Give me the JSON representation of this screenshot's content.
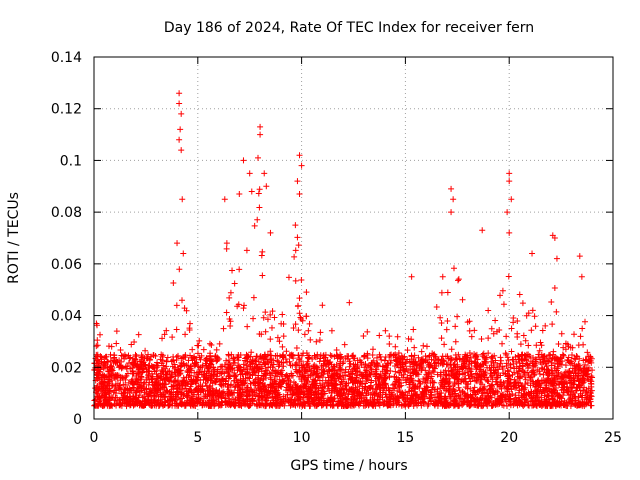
{
  "chart_data": {
    "type": "scatter",
    "title": "Day 186 of 2024, Rate Of TEC Index for receiver fern",
    "xlabel": "GPS time / hours",
    "ylabel": "ROTI / TECUs",
    "xlim": [
      0,
      25
    ],
    "ylim": [
      0,
      0.14
    ],
    "xticks": [
      0,
      5,
      10,
      15,
      20,
      25
    ],
    "yticks": [
      0,
      0.02,
      0.04,
      0.06,
      0.08,
      0.1,
      0.12,
      0.14
    ],
    "xtick_labels": [
      "0",
      "5",
      "10",
      "15",
      "20",
      "25"
    ],
    "ytick_labels": [
      "0",
      "0.02",
      "0.04",
      "0.06",
      "0.08",
      "0.1",
      "0.12",
      "0.14"
    ],
    "grid": true,
    "marker": "plus",
    "point_color": "#ff0000",
    "data_range_hours": [
      0,
      24
    ],
    "baseline_roti": [
      0.005,
      0.025
    ],
    "activity_envelope": [
      {
        "x": 0.0,
        "y": 0.04
      },
      {
        "x": 0.5,
        "y": 0.03
      },
      {
        "x": 1.0,
        "y": 0.032
      },
      {
        "x": 1.5,
        "y": 0.028
      },
      {
        "x": 2.0,
        "y": 0.037
      },
      {
        "x": 2.5,
        "y": 0.033
      },
      {
        "x": 3.0,
        "y": 0.027
      },
      {
        "x": 3.5,
        "y": 0.04
      },
      {
        "x": 4.0,
        "y": 0.068
      },
      {
        "x": 4.5,
        "y": 0.04
      },
      {
        "x": 5.0,
        "y": 0.036
      },
      {
        "x": 5.5,
        "y": 0.03
      },
      {
        "x": 6.0,
        "y": 0.045
      },
      {
        "x": 6.3,
        "y": 0.068
      },
      {
        "x": 7.0,
        "y": 0.06
      },
      {
        "x": 7.5,
        "y": 0.08
      },
      {
        "x": 8.0,
        "y": 0.09
      },
      {
        "x": 8.5,
        "y": 0.06
      },
      {
        "x": 9.0,
        "y": 0.04
      },
      {
        "x": 9.8,
        "y": 0.075
      },
      {
        "x": 10.5,
        "y": 0.035
      },
      {
        "x": 11.0,
        "y": 0.035
      },
      {
        "x": 12.0,
        "y": 0.035
      },
      {
        "x": 12.5,
        "y": 0.02
      },
      {
        "x": 13.0,
        "y": 0.035
      },
      {
        "x": 14.0,
        "y": 0.035
      },
      {
        "x": 15.0,
        "y": 0.035
      },
      {
        "x": 16.0,
        "y": 0.04
      },
      {
        "x": 16.7,
        "y": 0.05
      },
      {
        "x": 17.3,
        "y": 0.06
      },
      {
        "x": 18.0,
        "y": 0.045
      },
      {
        "x": 18.7,
        "y": 0.05
      },
      {
        "x": 19.3,
        "y": 0.04
      },
      {
        "x": 20.0,
        "y": 0.065
      },
      {
        "x": 20.5,
        "y": 0.05
      },
      {
        "x": 21.0,
        "y": 0.05
      },
      {
        "x": 21.5,
        "y": 0.03
      },
      {
        "x": 22.2,
        "y": 0.06
      },
      {
        "x": 22.7,
        "y": 0.03
      },
      {
        "x": 23.0,
        "y": 0.03
      },
      {
        "x": 23.5,
        "y": 0.05
      },
      {
        "x": 24.0,
        "y": 0.02
      }
    ],
    "notable_points": [
      {
        "x": 4.1,
        "y": 0.126
      },
      {
        "x": 4.1,
        "y": 0.122
      },
      {
        "x": 4.2,
        "y": 0.118
      },
      {
        "x": 4.15,
        "y": 0.112
      },
      {
        "x": 4.1,
        "y": 0.108
      },
      {
        "x": 4.2,
        "y": 0.104
      },
      {
        "x": 4.25,
        "y": 0.085
      },
      {
        "x": 4.0,
        "y": 0.068
      },
      {
        "x": 4.3,
        "y": 0.064
      },
      {
        "x": 7.2,
        "y": 0.1
      },
      {
        "x": 7.5,
        "y": 0.095
      },
      {
        "x": 7.6,
        "y": 0.088
      },
      {
        "x": 7.0,
        "y": 0.087
      },
      {
        "x": 8.0,
        "y": 0.113
      },
      {
        "x": 8.0,
        "y": 0.11
      },
      {
        "x": 7.9,
        "y": 0.101
      },
      {
        "x": 8.2,
        "y": 0.095
      },
      {
        "x": 8.3,
        "y": 0.09
      },
      {
        "x": 6.3,
        "y": 0.085
      },
      {
        "x": 6.4,
        "y": 0.068
      },
      {
        "x": 9.9,
        "y": 0.102
      },
      {
        "x": 10.0,
        "y": 0.098
      },
      {
        "x": 9.8,
        "y": 0.092
      },
      {
        "x": 9.9,
        "y": 0.087
      },
      {
        "x": 9.7,
        "y": 0.075
      },
      {
        "x": 8.5,
        "y": 0.072
      },
      {
        "x": 17.2,
        "y": 0.089
      },
      {
        "x": 17.3,
        "y": 0.085
      },
      {
        "x": 17.2,
        "y": 0.08
      },
      {
        "x": 18.7,
        "y": 0.073
      },
      {
        "x": 16.8,
        "y": 0.055
      },
      {
        "x": 15.3,
        "y": 0.055
      },
      {
        "x": 20.0,
        "y": 0.095
      },
      {
        "x": 20.0,
        "y": 0.092
      },
      {
        "x": 20.1,
        "y": 0.085
      },
      {
        "x": 19.9,
        "y": 0.08
      },
      {
        "x": 20.0,
        "y": 0.072
      },
      {
        "x": 21.1,
        "y": 0.064
      },
      {
        "x": 22.1,
        "y": 0.071
      },
      {
        "x": 22.2,
        "y": 0.07
      },
      {
        "x": 22.3,
        "y": 0.062
      },
      {
        "x": 23.4,
        "y": 0.063
      },
      {
        "x": 23.5,
        "y": 0.055
      },
      {
        "x": 12.3,
        "y": 0.045
      },
      {
        "x": 11.0,
        "y": 0.044
      },
      {
        "x": 1.1,
        "y": 0.034
      }
    ]
  }
}
